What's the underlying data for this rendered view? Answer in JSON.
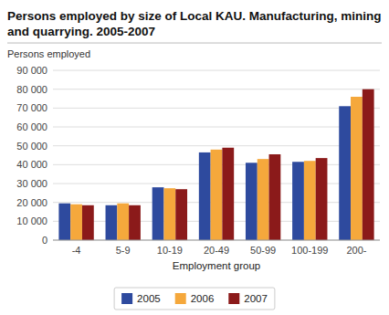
{
  "chart_data": {
    "type": "bar",
    "title": "Persons employed by size of Local KAU. Manufacturing, mining\nand quarrying. 2005-2007",
    "ylabel": "Persons employed",
    "xlabel": "Employment group",
    "categories": [
      "-4",
      "5-9",
      "10-19",
      "20-49",
      "50-99",
      "100-199",
      "200-"
    ],
    "series": [
      {
        "name": "2005",
        "color": "#2E4A9E",
        "values": [
          19500,
          18500,
          28000,
          46500,
          41000,
          41500,
          71000
        ]
      },
      {
        "name": "2006",
        "color": "#F5A83C",
        "values": [
          19000,
          19500,
          27500,
          48000,
          43000,
          42000,
          76000
        ]
      },
      {
        "name": "2007",
        "color": "#8B1A1A",
        "values": [
          18500,
          18500,
          27000,
          49000,
          45500,
          43500,
          80000
        ]
      }
    ],
    "ylim": [
      0,
      90000
    ],
    "yticks": [
      0,
      {
        "value": 10000,
        "label": "10 000"
      },
      {
        "value": 20000,
        "label": "20 000"
      },
      {
        "value": 30000,
        "label": "30 000"
      },
      {
        "value": 40000,
        "label": "40 000"
      },
      {
        "value": 50000,
        "label": "50 000"
      },
      {
        "value": 60000,
        "label": "60 000"
      },
      {
        "value": 70000,
        "label": "70 000"
      },
      {
        "value": 80000,
        "label": "80 000"
      },
      {
        "value": 90000,
        "label": "90 000"
      }
    ],
    "grid": true,
    "legend": "bottom"
  }
}
